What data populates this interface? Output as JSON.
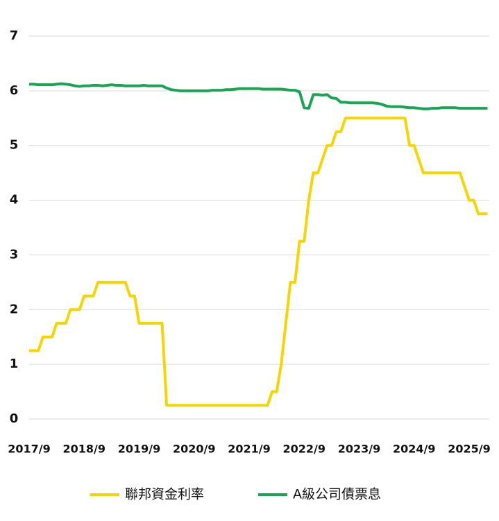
{
  "chart_data": {
    "type": "line",
    "categories": [
      "2017/9",
      null,
      null,
      null,
      null,
      null,
      null,
      null,
      null,
      null,
      null,
      null,
      "2018/9",
      null,
      null,
      null,
      null,
      null,
      null,
      null,
      null,
      null,
      null,
      null,
      "2019/9",
      null,
      null,
      null,
      null,
      null,
      null,
      null,
      null,
      null,
      null,
      null,
      "2020/9",
      null,
      null,
      null,
      null,
      null,
      null,
      null,
      null,
      null,
      null,
      null,
      "2021/9",
      null,
      null,
      null,
      null,
      null,
      null,
      null,
      null,
      null,
      null,
      null,
      "2022/9",
      null,
      null,
      null,
      null,
      null,
      null,
      null,
      null,
      null,
      null,
      null,
      "2023/9",
      null,
      null,
      null,
      null,
      null,
      null,
      null,
      null,
      null,
      null,
      null,
      "2024/9",
      null,
      null,
      null,
      null,
      null,
      null,
      null,
      null,
      null,
      null,
      null,
      "2025/9",
      null,
      null,
      null,
      null
    ],
    "series": [
      {
        "name": "聯邦資金利率",
        "color": "#f7d600",
        "values": [
          1.25,
          1.25,
          1.25,
          1.5,
          1.5,
          1.5,
          1.75,
          1.75,
          1.75,
          2,
          2,
          2,
          2.25,
          2.25,
          2.25,
          2.5,
          2.5,
          2.5,
          2.5,
          2.5,
          2.5,
          2.5,
          2.25,
          2.25,
          1.75,
          1.75,
          1.75,
          1.75,
          1.75,
          1.75,
          0.25,
          0.25,
          0.25,
          0.25,
          0.25,
          0.25,
          0.25,
          0.25,
          0.25,
          0.25,
          0.25,
          0.25,
          0.25,
          0.25,
          0.25,
          0.25,
          0.25,
          0.25,
          0.25,
          0.25,
          0.25,
          0.25,
          0.25,
          0.5,
          0.5,
          1,
          1.75,
          2.5,
          2.5,
          3.25,
          3.25,
          4,
          4.5,
          4.5,
          4.75,
          5,
          5,
          5.25,
          5.25,
          5.5,
          5.5,
          5.5,
          5.5,
          5.5,
          5.5,
          5.5,
          5.5,
          5.5,
          5.5,
          5.5,
          5.5,
          5.5,
          5.5,
          5,
          5,
          4.75,
          4.5,
          4.5,
          4.5,
          4.5,
          4.5,
          4.5,
          4.5,
          4.5,
          4.5,
          4.25,
          4,
          4,
          3.75,
          3.75,
          3.75
        ]
      },
      {
        "name": "A級公司債票息",
        "color": "#1aa553",
        "values": [
          6.12,
          6.12,
          6.11,
          6.11,
          6.11,
          6.11,
          6.12,
          6.13,
          6.12,
          6.11,
          6.09,
          6.08,
          6.09,
          6.09,
          6.1,
          6.1,
          6.09,
          6.1,
          6.11,
          6.1,
          6.1,
          6.09,
          6.09,
          6.09,
          6.09,
          6.1,
          6.09,
          6.09,
          6.09,
          6.09,
          6.05,
          6.02,
          6.01,
          6.0,
          6.0,
          6.0,
          6.0,
          6.0,
          6.0,
          6.0,
          6.01,
          6.01,
          6.01,
          6.02,
          6.02,
          6.03,
          6.04,
          6.04,
          6.04,
          6.04,
          6.04,
          6.03,
          6.03,
          6.03,
          6.03,
          6.03,
          6.02,
          6.01,
          6.01,
          5.98,
          5.69,
          5.68,
          5.93,
          5.93,
          5.92,
          5.93,
          5.87,
          5.86,
          5.79,
          5.79,
          5.78,
          5.78,
          5.78,
          5.78,
          5.78,
          5.78,
          5.77,
          5.75,
          5.72,
          5.71,
          5.71,
          5.71,
          5.7,
          5.69,
          5.69,
          5.68,
          5.67,
          5.67,
          5.68,
          5.68,
          5.69,
          5.69,
          5.69,
          5.69,
          5.68,
          5.68,
          5.68,
          5.68,
          5.68,
          5.68,
          5.68
        ]
      }
    ],
    "ylim": [
      0,
      7
    ],
    "yticks": [
      0,
      1,
      2,
      3,
      4,
      5,
      6,
      7
    ],
    "grid": true,
    "legend": "bottom"
  }
}
